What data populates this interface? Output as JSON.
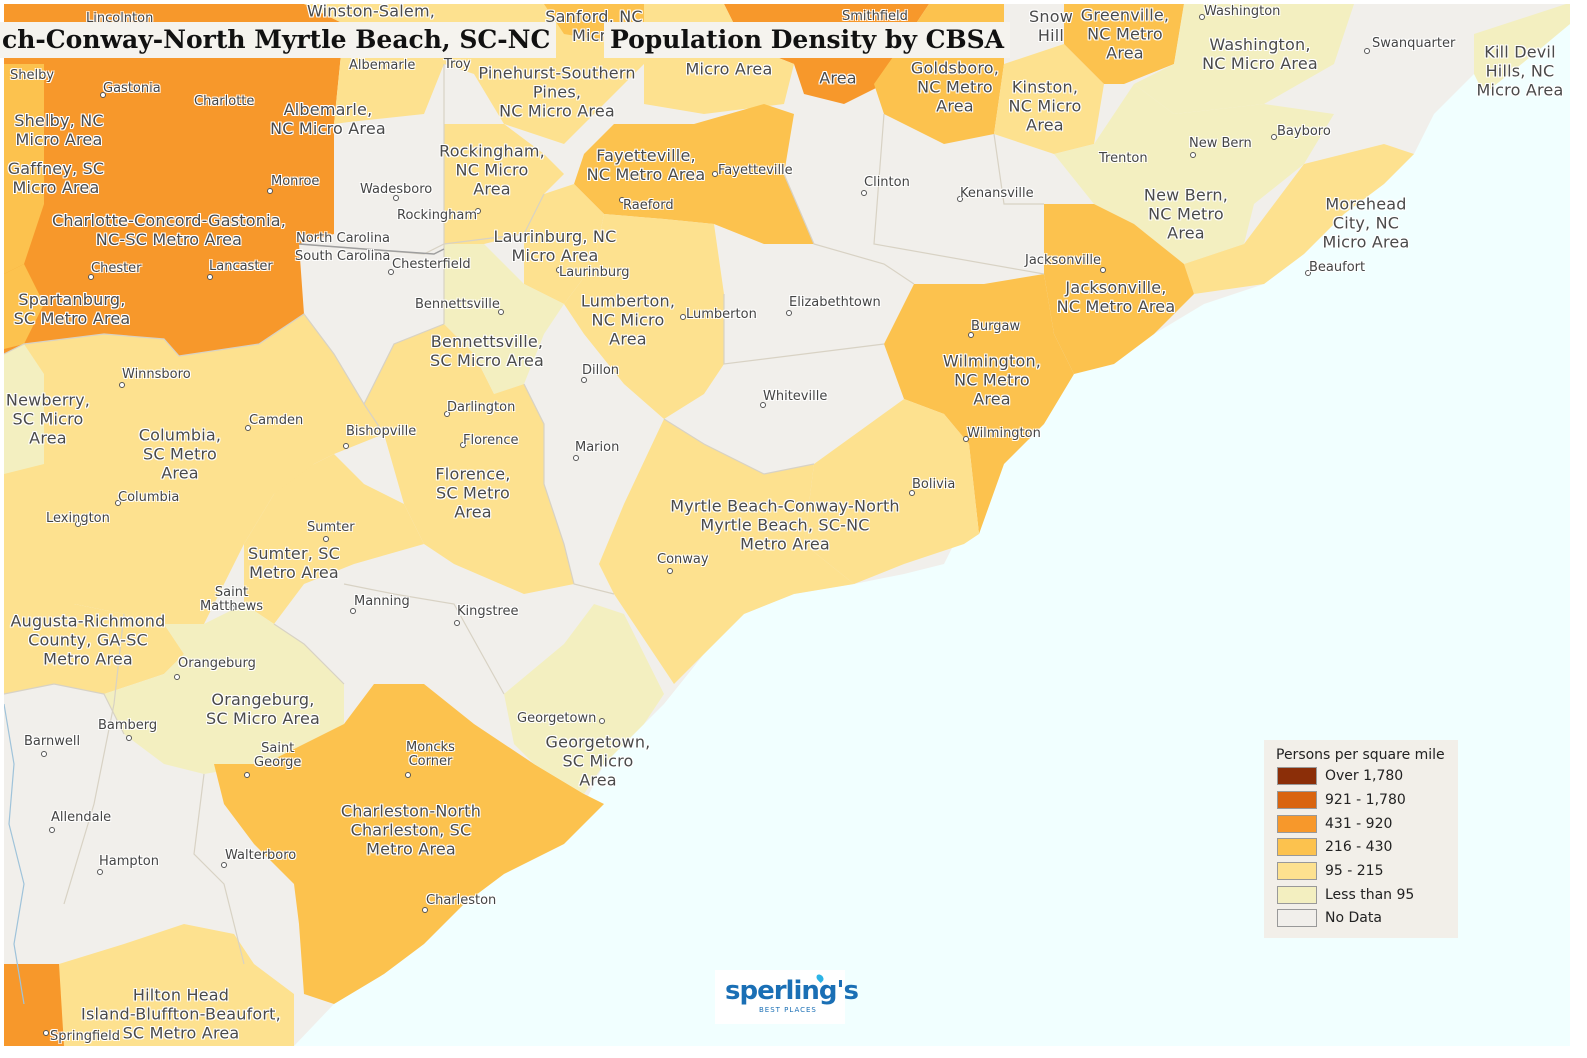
{
  "title_left": "ch-Conway-North Myrtle Beach, SC-NC",
  "title_right": "Population Density by CBSA",
  "legend": {
    "title": "Persons per square mile",
    "items": [
      {
        "label": "Over 1,780",
        "color": "#8b2e08"
      },
      {
        "label": "921 - 1,780",
        "color": "#d9640f"
      },
      {
        "label": "431 - 920",
        "color": "#f7982b"
      },
      {
        "label": "216 - 430",
        "color": "#fcc24e"
      },
      {
        "label": "95 - 215",
        "color": "#fde18f"
      },
      {
        "label": "Less than 95",
        "color": "#f3efc0"
      },
      {
        "label": "No Data",
        "color": "#f1efeb"
      }
    ]
  },
  "colors": {
    "ocean": "#f1ffff",
    "no_data": "#f1efeb",
    "lt95": "#f3efc0",
    "c95_215": "#fde18f",
    "c216_430": "#fcc24e",
    "c431_920": "#f7982b",
    "c921_1780": "#d9640f"
  },
  "area_labels": [
    "Shelby, NC\nMicro Area",
    "Gaffney, SC\nMicro Area",
    "Charlotte-Concord-Gastonia,\nNC-SC Metro Area",
    "Spartanburg,\nSC Metro Area",
    "Albemarle,\nNC Micro Area",
    "Pinehurst-Southern\nPines,\nNC Micro Area",
    "Rockingham,\nNC Micro\nArea",
    "Fayetteville,\nNC Metro Area",
    "Laurinburg, NC\nMicro Area",
    "Lumberton,\nNC Micro\nArea",
    "Bennettsville,\nSC Micro Area",
    "Newberry,\nSC Micro\nArea",
    "Columbia,\nSC Metro\nArea",
    "Florence,\nSC Metro\nArea",
    "Sumter, SC\nMetro Area",
    "Augusta-Richmond\nCounty, GA-SC\nMetro Area",
    "Orangeburg,\nSC Micro Area",
    "Myrtle Beach-Conway-North\nMyrtle Beach, SC-NC\nMetro Area",
    "Wilmington,\nNC Metro\nArea",
    "Jacksonville,\nNC Metro Area",
    "Kinston,\nNC Micro\nArea",
    "Goldsboro,\nNC Metro\nArea",
    "Greenville,\nNC Metro\nArea",
    "Washington,\nNC Micro Area",
    "Kill Devil\nHills, NC\nMicro Area",
    "New Bern,\nNC Metro\nArea",
    "Morehead\nCity, NC\nMicro Area",
    "Georgetown,\nSC Micro\nArea",
    "Charleston-North\nCharleston, SC\nMetro Area",
    "Hilton Head\nIsland-Bluffton-Beaufort,\nSC Metro Area",
    "Micro Area",
    "Area",
    "Sanford, NC\nMicro",
    "Winston-Salem,",
    "Snow\nHill"
  ],
  "cities": [
    "Lincolnton",
    "Shelby",
    "Gastonia",
    "Charlotte",
    "Monroe",
    "Chester",
    "Lancaster",
    "Albemarle",
    "Wadesboro",
    "Rockingham",
    "Chesterfield",
    "Bennettsville",
    "Laurinburg",
    "Raeford",
    "Fayetteville",
    "Lumberton",
    "Clinton",
    "Kenansville",
    "Elizabethtown",
    "Dillon",
    "Darlington",
    "Florence",
    "Marion",
    "Whiteville",
    "Winnsboro",
    "Camden",
    "Bishopville",
    "Columbia",
    "Lexington",
    "Sumter",
    "Saint\nMatthews",
    "Manning",
    "Kingstree",
    "Conway",
    "Burgaw",
    "Wilmington",
    "Bolivia",
    "Jacksonville",
    "Trenton",
    "New Bern",
    "Bayboro",
    "Beaufort",
    "Washington",
    "Swanquarter",
    "Orangeburg",
    "Bamberg",
    "Barnwell",
    "Allendale",
    "Hampton",
    "Walterboro",
    "Saint\nGeorge",
    "Moncks\nCorner",
    "Georgetown",
    "Charleston",
    "Springfield",
    "Smithfield",
    "Troy",
    "North Carolina",
    "South Carolina"
  ],
  "logo": {
    "name": "sperling's",
    "tagline": "BEST PLACES"
  }
}
